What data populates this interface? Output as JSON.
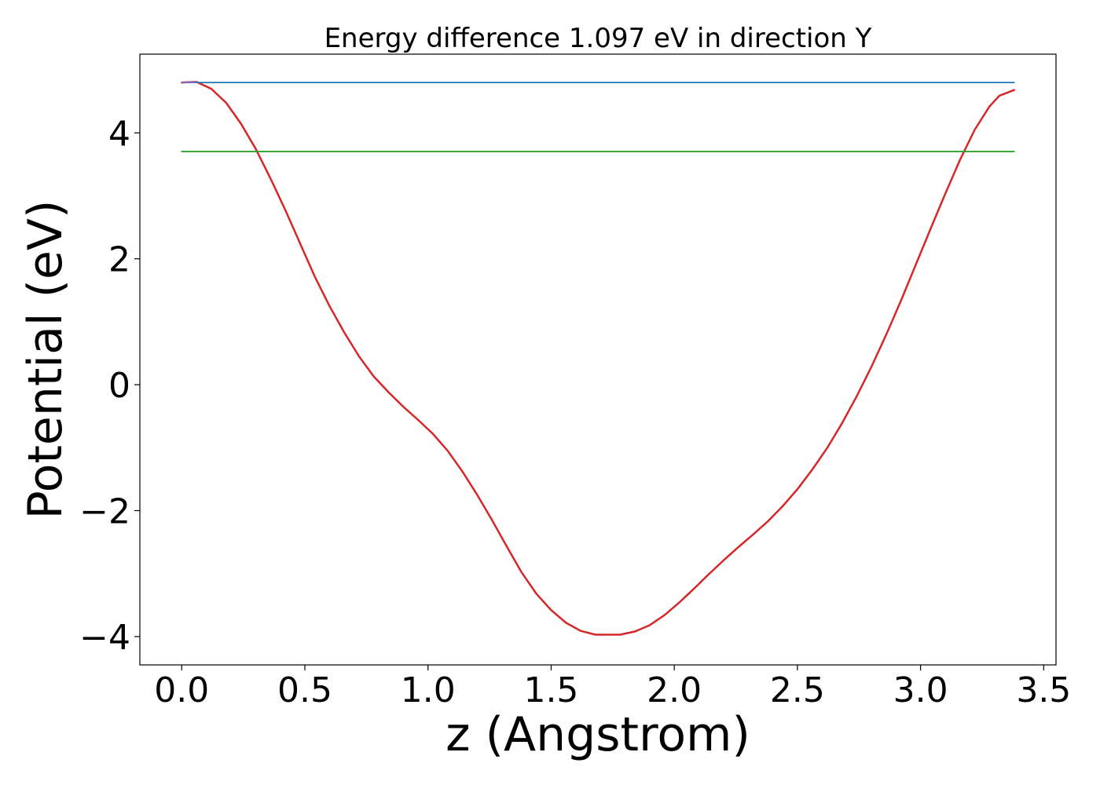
{
  "chart_data": {
    "type": "line",
    "title": "Energy difference 1.097 eV in direction Y",
    "xlabel": "z (Angstrom)",
    "ylabel": "Potential (eV)",
    "xlim": [
      -0.17,
      3.55
    ],
    "ylim": [
      -4.45,
      5.25
    ],
    "xticks": [
      0.0,
      0.5,
      1.0,
      1.5,
      2.0,
      2.5,
      3.0,
      3.5
    ],
    "xtick_labels": [
      "0.0",
      "0.5",
      "1.0",
      "1.5",
      "2.0",
      "2.5",
      "3.0",
      "3.5"
    ],
    "yticks": [
      -4,
      -2,
      0,
      2,
      4
    ],
    "ytick_labels": [
      "−4",
      "−2",
      "0",
      "2",
      "4"
    ],
    "grid": false,
    "series": [
      {
        "color": "#d62728",
        "x": [
          0.0,
          0.06,
          0.12,
          0.18,
          0.24,
          0.3,
          0.36,
          0.42,
          0.48,
          0.54,
          0.6,
          0.66,
          0.72,
          0.78,
          0.84,
          0.9,
          0.96,
          1.02,
          1.08,
          1.14,
          1.2,
          1.26,
          1.32,
          1.38,
          1.44,
          1.5,
          1.56,
          1.62,
          1.68,
          1.74,
          1.78,
          1.84,
          1.9,
          1.96,
          2.02,
          2.08,
          2.14,
          2.2,
          2.26,
          2.32,
          2.38,
          2.44,
          2.5,
          2.56,
          2.62,
          2.68,
          2.74,
          2.8,
          2.86,
          2.92,
          2.98,
          3.04,
          3.1,
          3.16,
          3.22,
          3.28,
          3.32,
          3.38
        ],
        "y": [
          4.8,
          4.81,
          4.7,
          4.48,
          4.15,
          3.75,
          3.28,
          2.78,
          2.25,
          1.72,
          1.25,
          0.83,
          0.45,
          0.13,
          -0.12,
          -0.35,
          -0.56,
          -0.78,
          -1.05,
          -1.38,
          -1.75,
          -2.15,
          -2.57,
          -2.98,
          -3.32,
          -3.58,
          -3.78,
          -3.91,
          -3.97,
          -3.97,
          -3.97,
          -3.92,
          -3.82,
          -3.66,
          -3.46,
          -3.24,
          -3.01,
          -2.79,
          -2.58,
          -2.38,
          -2.17,
          -1.93,
          -1.66,
          -1.35,
          -1.01,
          -0.62,
          -0.19,
          0.28,
          0.79,
          1.33,
          1.9,
          2.47,
          3.03,
          3.57,
          4.05,
          4.42,
          4.59,
          4.68
        ]
      },
      {
        "color": "#1f77b4",
        "x": [
          0.0,
          3.38
        ],
        "y": [
          4.8,
          4.8
        ]
      },
      {
        "color": "#2ca02c",
        "x": [
          0.0,
          3.38
        ],
        "y": [
          3.703,
          3.703
        ]
      },
      {
        "color": "#9467bd",
        "x": [
          0.0,
          0.06
        ],
        "y": [
          4.8,
          4.81
        ]
      }
    ]
  }
}
